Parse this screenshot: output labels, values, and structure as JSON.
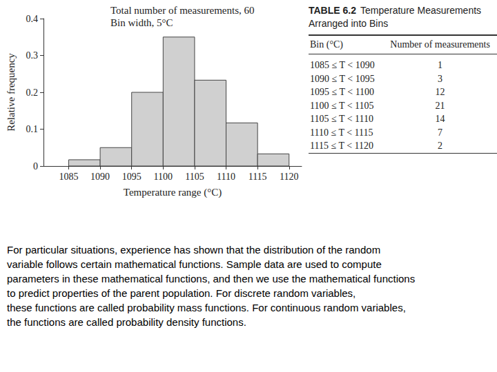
{
  "chart_data": {
    "type": "histogram",
    "annotations": [
      "Total number of measurements, 60",
      "Bin width, 5°C"
    ],
    "x_label": "Temperature range (°C)",
    "y_label": "Relative frequency",
    "bins": [
      1085,
      1090,
      1095,
      1100,
      1105,
      1110,
      1115,
      1120
    ],
    "values": [
      0.017,
      0.05,
      0.2,
      0.35,
      0.233,
      0.117,
      0.033
    ],
    "color": "#d0d0d0",
    "xlim": [
      1081,
      1122
    ],
    "xticks": [
      1085,
      1090,
      1095,
      1100,
      1105,
      1110,
      1115,
      1120
    ],
    "ylim": [
      0,
      0.4
    ],
    "yticks": [
      0,
      0.1,
      0.2,
      0.3,
      0.4
    ],
    "grid": false
  },
  "table": {
    "label": "TABLE 6.2",
    "title": "Temperature Measurements Arranged into Bins",
    "header": [
      "Bin (°C)",
      "Number of measurements"
    ],
    "rows": [
      [
        "1085 ≤ T < 1090",
        "1"
      ],
      [
        "1090 ≤ T < 1095",
        "3"
      ],
      [
        "1095 ≤ T < 1100",
        "12"
      ],
      [
        "1100 ≤ T < 1105",
        "21"
      ],
      [
        "1105 ≤ T < 1110",
        "14"
      ],
      [
        "1110 ≤ T < 1115",
        "7"
      ],
      [
        "1115 ≤ T < 1120",
        "2"
      ]
    ]
  },
  "paragraph": [
    "For particular situations, experience has shown that the distribution of the random",
    "variable follows certain mathematical functions. Sample data are used to compute",
    "parameters in these mathematical functions, and then we use the mathematical functions",
    "to predict properties of the parent population. For discrete random variables,",
    "these functions are called probability mass functions. For continuous random variables,",
    "the functions are called probability density functions."
  ]
}
